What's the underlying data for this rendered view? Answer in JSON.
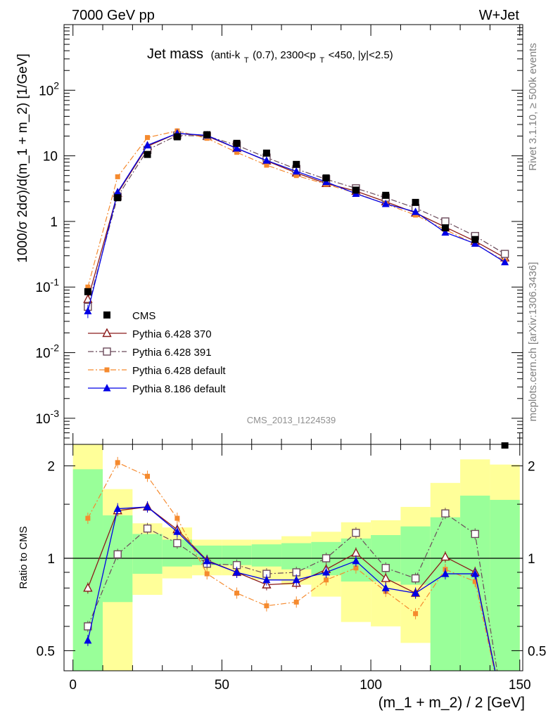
{
  "header": {
    "energy_label": "7000 GeV pp",
    "process_label": "W+Jet"
  },
  "side_labels": {
    "rivet": "Rivet 3.1.10, ≥ 500k events",
    "mcplots": "mcplots.cern.ch [arXiv:1306.3436]"
  },
  "analysis_id": "CMS_2013_I1224539",
  "colors": {
    "cms": "#000000",
    "p370": "#8b1a1a",
    "p391": "#6b4a5a",
    "p6default": "#f58a2e",
    "p8default": "#0000e6",
    "band_inner": "#99ff99",
    "band_outer": "#ffff99"
  },
  "chart_data": [
    {
      "type": "scatter",
      "panel": "main",
      "title": "Jet mass (anti-kT(0.7), 2300<pT<450, |y|<2.5)",
      "title_main": "Jet mass",
      "title_sub": "(anti-k",
      "title_sub2": "(0.7), 2300<p",
      "title_sub3": "<450, |y|<2.5)",
      "title_subscript": "T",
      "ylabel": "1000/σ 2dσ)/d(m_1 + m_2) [1/GeV]",
      "yscale": "log",
      "ylim": [
        0.0004,
        1000
      ],
      "xlim": [
        -3,
        151
      ],
      "ytick_labels": [
        "10",
        "1",
        "10"
      ],
      "ytick_pow_labels": [
        "2",
        "-1",
        "-2",
        "-3"
      ],
      "ytick_base": "10",
      "x": [
        5,
        15,
        25,
        35,
        45,
        55,
        65,
        75,
        85,
        95,
        105,
        115,
        125,
        135,
        145
      ],
      "series": [
        {
          "name": "CMS",
          "key": "cms",
          "marker": "square",
          "values": [
            0.085,
            2.3,
            10.5,
            19.5,
            21,
            15.5,
            11,
            7.4,
            4.6,
            3.0,
            2.5,
            1.95,
            0.8,
            0.53,
            0.00038
          ]
        },
        {
          "name": "Pythia 6.428 370",
          "key": "p370",
          "marker": "triangle-open",
          "values": [
            0.065,
            2.7,
            14,
            22,
            20,
            13,
            8.4,
            5.5,
            3.8,
            2.9,
            2.0,
            1.35,
            0.82,
            0.5,
            0.28
          ]
        },
        {
          "name": "Pythia 6.428 391",
          "key": "p391",
          "marker": "square-open",
          "values": [
            0.05,
            2.4,
            12.3,
            20.5,
            20,
            14.5,
            9.4,
            6.3,
            4.4,
            3.2,
            2.3,
            1.6,
            1.0,
            0.6,
            0.32
          ]
        },
        {
          "name": "Pythia 6.428 default",
          "key": "p6default",
          "marker": "square-small",
          "values": [
            0.1,
            4.8,
            19,
            24,
            18.5,
            11.3,
            7.2,
            5.0,
            3.7,
            2.7,
            1.85,
            1.25,
            0.75,
            0.45,
            0.25
          ]
        },
        {
          "name": "Pythia 8.186 default",
          "key": "p8default",
          "marker": "triangle",
          "values": [
            0.043,
            2.8,
            14.5,
            22,
            20.5,
            13,
            8.5,
            5.8,
            4.0,
            2.65,
            1.85,
            1.4,
            0.68,
            0.46,
            0.24
          ]
        }
      ]
    },
    {
      "type": "line",
      "panel": "ratio",
      "xlabel": "(m_1 + m_2) / 2 [GeV]",
      "ylabel": "Ratio to CMS",
      "yscale": "log",
      "ylim": [
        0.43,
        2.35
      ],
      "xlim": [
        -3,
        151
      ],
      "xtick_values": [
        0,
        50,
        100,
        150
      ],
      "xtick_labels": [
        "0",
        "50",
        "100",
        "150"
      ],
      "ytick_values": [
        0.5,
        1,
        2
      ],
      "ytick_labels": [
        "0.5",
        "1",
        "2"
      ],
      "bins": [
        [
          0,
          10
        ],
        [
          10,
          20
        ],
        [
          20,
          30
        ],
        [
          30,
          40
        ],
        [
          40,
          50
        ],
        [
          50,
          60
        ],
        [
          60,
          70
        ],
        [
          70,
          80
        ],
        [
          80,
          90
        ],
        [
          90,
          100
        ],
        [
          100,
          110
        ],
        [
          110,
          120
        ],
        [
          120,
          130
        ],
        [
          130,
          140
        ],
        [
          140,
          150
        ]
      ],
      "band_inner": [
        [
          0.43,
          1.95
        ],
        [
          0.72,
          1.38
        ],
        [
          0.89,
          1.2
        ],
        [
          0.94,
          1.15
        ],
        [
          0.95,
          1.1
        ],
        [
          0.95,
          1.1
        ],
        [
          0.94,
          1.11
        ],
        [
          0.92,
          1.12
        ],
        [
          0.88,
          1.13
        ],
        [
          0.84,
          1.16
        ],
        [
          0.84,
          1.19
        ],
        [
          0.82,
          1.27
        ],
        [
          0.43,
          1.36
        ],
        [
          0.43,
          1.6
        ],
        [
          0.43,
          1.55
        ]
      ],
      "band_outer": [
        [
          0.43,
          2.35
        ],
        [
          0.43,
          1.68
        ],
        [
          0.76,
          1.3
        ],
        [
          0.86,
          1.26
        ],
        [
          0.88,
          1.15
        ],
        [
          0.88,
          1.15
        ],
        [
          0.85,
          1.15
        ],
        [
          0.82,
          1.18
        ],
        [
          0.75,
          1.22
        ],
        [
          0.62,
          1.31
        ],
        [
          0.6,
          1.33
        ],
        [
          0.53,
          1.47
        ],
        [
          0.43,
          1.76
        ],
        [
          0.43,
          2.1
        ],
        [
          0.43,
          2.02
        ]
      ],
      "series": [
        {
          "name": "Pythia 6.428 370",
          "key": "p370",
          "marker": "triangle-open",
          "values": [
            0.8,
            1.43,
            1.47,
            1.24,
            0.985,
            0.9,
            0.82,
            0.83,
            0.92,
            1.04,
            0.86,
            0.77,
            1.01,
            0.9,
            0.3
          ]
        },
        {
          "name": "Pythia 6.428 391",
          "key": "p391",
          "marker": "square-open",
          "values": [
            0.6,
            1.03,
            1.25,
            1.12,
            0.96,
            0.95,
            0.89,
            0.9,
            1.0,
            1.21,
            0.93,
            0.86,
            1.4,
            1.2,
            0.3
          ]
        },
        {
          "name": "Pythia 6.428 default",
          "key": "p6default",
          "marker": "square-small",
          "values": [
            1.35,
            2.05,
            1.85,
            1.35,
            0.89,
            0.77,
            0.7,
            0.72,
            0.85,
            0.93,
            0.78,
            0.66,
            0.92,
            0.84,
            0.3
          ]
        },
        {
          "name": "Pythia 8.186 default",
          "key": "p8default",
          "marker": "triangle",
          "values": [
            0.54,
            1.45,
            1.47,
            1.22,
            0.98,
            0.9,
            0.85,
            0.85,
            0.9,
            0.98,
            0.8,
            0.77,
            0.89,
            0.89,
            0.3
          ]
        }
      ]
    }
  ]
}
